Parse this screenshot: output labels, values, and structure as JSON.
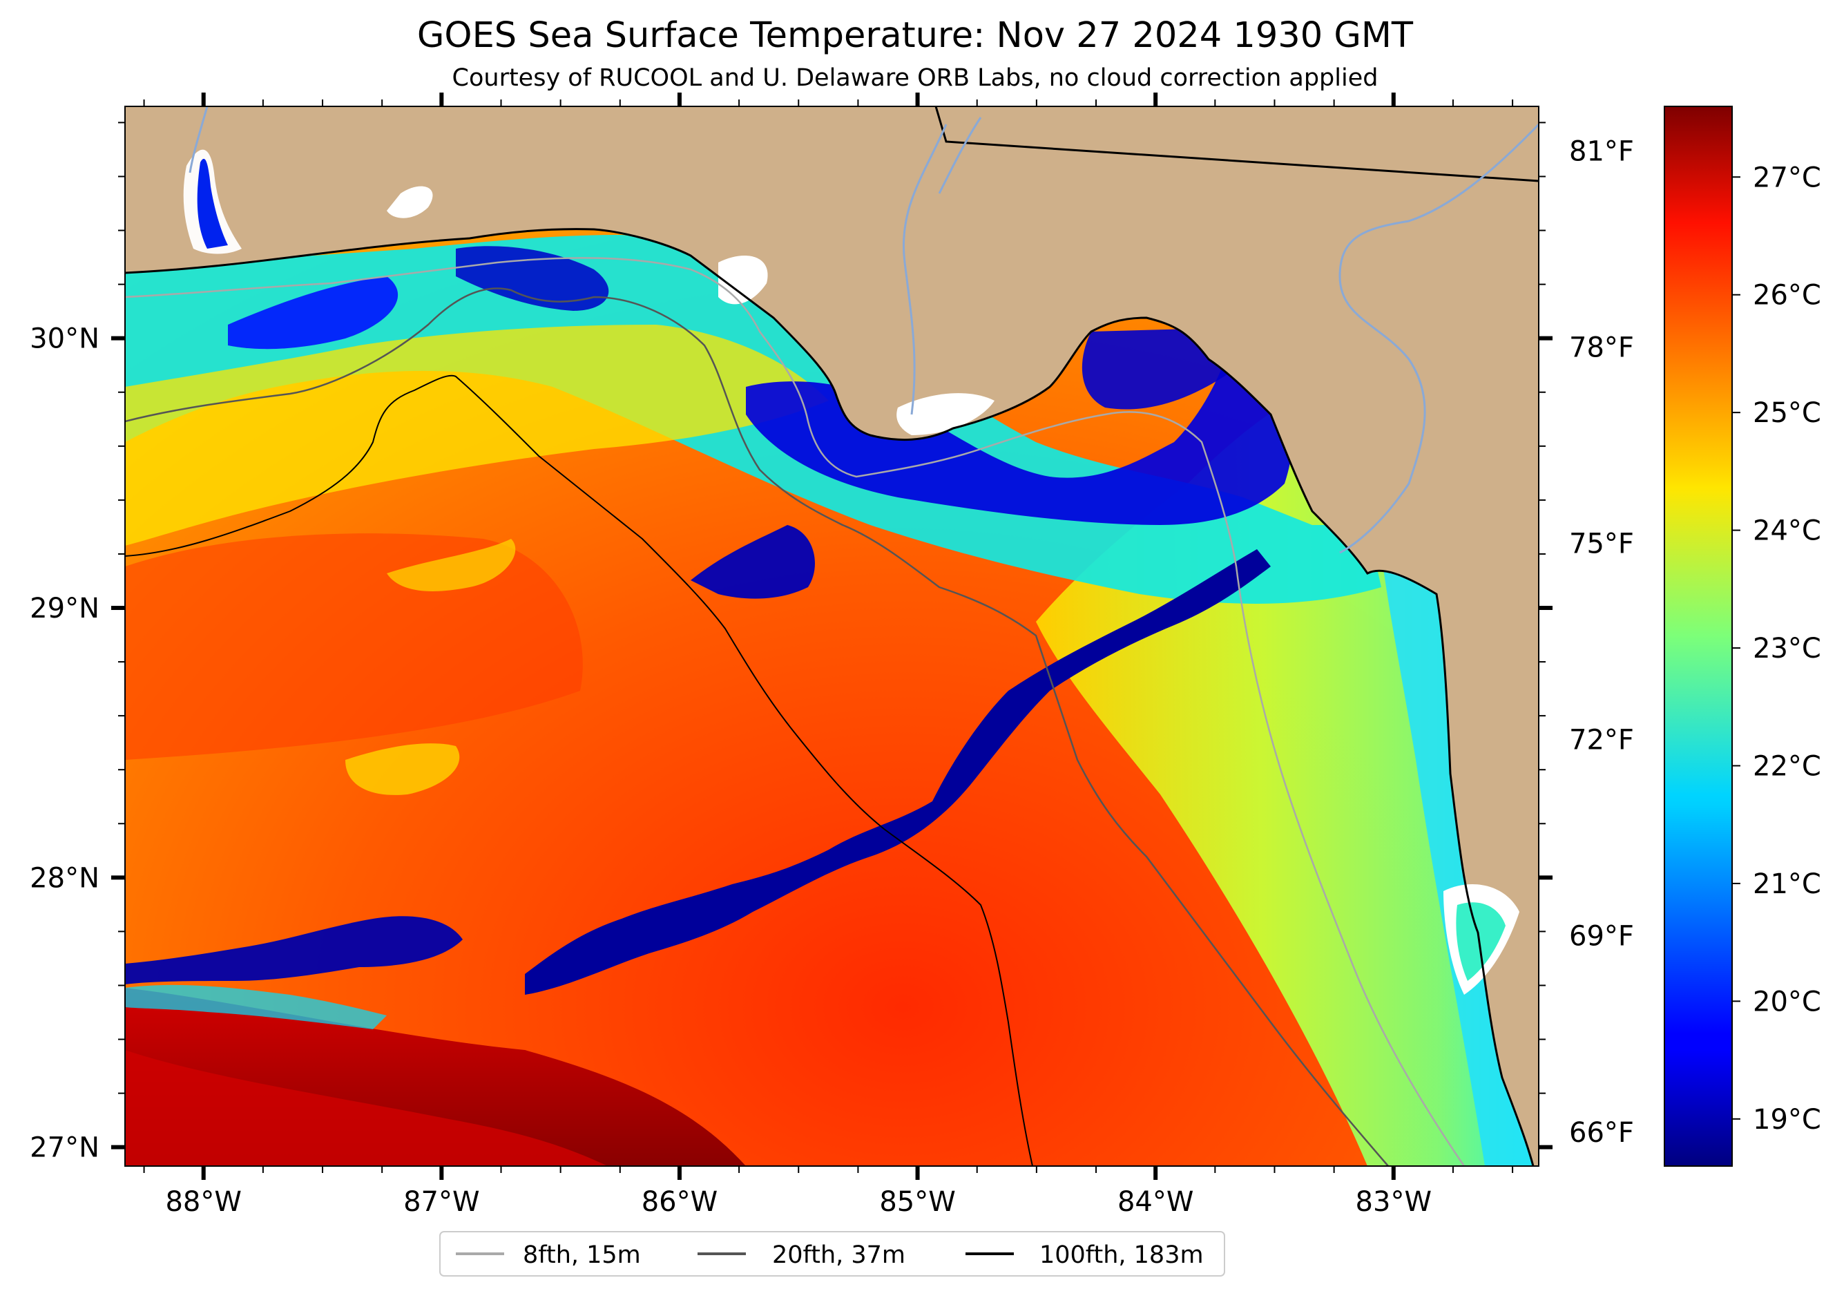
{
  "title": "GOES Sea Surface Temperature: Nov 27 2024 1930 GMT",
  "subtitle": "Courtesy of RUCOOL and U. Delaware ORB Labs, no cloud correction applied",
  "map": {
    "lon_range": [
      -88.33,
      -82.39
    ],
    "lat_range": [
      26.93,
      30.86
    ],
    "lon_ticks": [
      {
        "value": -88,
        "label": "88°W"
      },
      {
        "value": -87,
        "label": "87°W"
      },
      {
        "value": -86,
        "label": "86°W"
      },
      {
        "value": -85,
        "label": "85°W"
      },
      {
        "value": -84,
        "label": "84°W"
      },
      {
        "value": -83,
        "label": "83°W"
      }
    ],
    "lat_ticks": [
      {
        "value": 30,
        "label": "30°N"
      },
      {
        "value": 29,
        "label": "29°N"
      },
      {
        "value": 28,
        "label": "28°N"
      },
      {
        "value": 27,
        "label": "27°N"
      }
    ],
    "colors": {
      "land": "#cfb08a",
      "no_data": "#ffffff",
      "coastline": "#000000",
      "rivers": "#8aa9d6"
    }
  },
  "colorbar": {
    "colormap": "jet",
    "range_c": [
      18.6,
      27.6
    ],
    "c_ticks": [
      {
        "value": 27,
        "label": "27°C"
      },
      {
        "value": 26,
        "label": "26°C"
      },
      {
        "value": 25,
        "label": "25°C"
      },
      {
        "value": 24,
        "label": "24°C"
      },
      {
        "value": 23,
        "label": "23°C"
      },
      {
        "value": 22,
        "label": "22°C"
      },
      {
        "value": 21,
        "label": "21°C"
      },
      {
        "value": 20,
        "label": "20°C"
      },
      {
        "value": 19,
        "label": "19°C"
      }
    ],
    "f_ticks": [
      {
        "value": 81,
        "label": "81°F"
      },
      {
        "value": 78,
        "label": "78°F"
      },
      {
        "value": 75,
        "label": "75°F"
      },
      {
        "value": 72,
        "label": "72°F"
      },
      {
        "value": 69,
        "label": "69°F"
      },
      {
        "value": 66,
        "label": "66°F"
      }
    ]
  },
  "legend": [
    {
      "label": "8fth, 15m",
      "color": "#a9a9a9"
    },
    {
      "label": "20fth, 37m",
      "color": "#555555"
    },
    {
      "label": "100fth, 183m",
      "color": "#000000"
    }
  ]
}
